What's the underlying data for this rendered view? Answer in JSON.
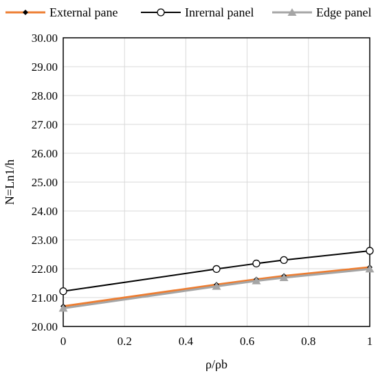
{
  "chart_data": {
    "type": "line",
    "title": "",
    "xlabel": "ρ/ρb",
    "ylabel": "N=Ln1/h",
    "xlim": [
      0,
      1
    ],
    "ylim": [
      20.0,
      30.0
    ],
    "x_ticks": [
      "0",
      "0.2",
      "0.4",
      "0.6",
      "0.8",
      "1"
    ],
    "y_ticks": [
      "20.00",
      "21.00",
      "22.00",
      "23.00",
      "24.00",
      "25.00",
      "26.00",
      "27.00",
      "28.00",
      "29.00",
      "30.00"
    ],
    "grid": true,
    "legend_position": "top",
    "series": [
      {
        "name": "External pane",
        "color": "#ED7D31",
        "marker": "diamond",
        "marker_color": "#000000",
        "points": [
          [
            0,
            20.7
          ],
          [
            0.5,
            21.45
          ],
          [
            0.63,
            21.63
          ],
          [
            0.72,
            21.75
          ],
          [
            1,
            22.05
          ]
        ]
      },
      {
        "name": "Inrernal panel",
        "color": "#000000",
        "marker": "circle",
        "marker_color": "#ffffff",
        "points": [
          [
            0,
            21.22
          ],
          [
            0.5,
            21.99
          ],
          [
            0.63,
            22.18
          ],
          [
            0.72,
            22.3
          ],
          [
            1,
            22.62
          ]
        ]
      },
      {
        "name": "Edge panel",
        "color": "#A5A5A5",
        "marker": "triangle",
        "marker_color": "#A5A5A5",
        "points": [
          [
            0,
            20.63
          ],
          [
            0.5,
            21.39
          ],
          [
            0.63,
            21.58
          ],
          [
            0.72,
            21.69
          ],
          [
            1,
            21.99
          ]
        ]
      }
    ]
  }
}
